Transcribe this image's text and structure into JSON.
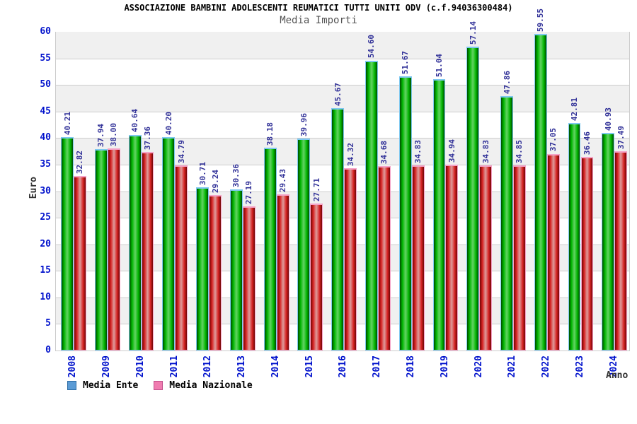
{
  "chart_data": {
    "type": "bar",
    "title": "ASSOCIAZIONE BAMBINI ADOLESCENTI REUMATICI TUTTI UNITI ODV (c.f.94036300484)",
    "subtitle": "Media Importi",
    "xlabel": "Anno",
    "ylabel": "Euro",
    "ylim": [
      0,
      60
    ],
    "yticks": [
      0,
      5,
      10,
      15,
      20,
      25,
      30,
      35,
      40,
      45,
      50,
      55,
      60
    ],
    "grid": "horizontal gridlines with alternating gray/white bands",
    "legend_position": "bottom-left",
    "value_label_decimals": 2,
    "categories": [
      "2008",
      "2009",
      "2010",
      "2011",
      "2012",
      "2013",
      "2014",
      "2015",
      "2016",
      "2017",
      "2018",
      "2019",
      "2020",
      "2021",
      "2022",
      "2023",
      "2024"
    ],
    "series": [
      {
        "name": "Media Ente",
        "values": [
          40.21,
          37.94,
          40.64,
          40.2,
          30.71,
          30.36,
          38.18,
          39.96,
          45.67,
          54.6,
          51.67,
          51.04,
          57.14,
          47.86,
          59.55,
          42.81,
          40.93
        ],
        "legend_color": "#5B9BD5",
        "legend_border": "#2E6DA4",
        "bar_edge": "#004B00",
        "bar_mid": "#00B400",
        "bar_center": "#63D463",
        "bar_cap": "#7EC8F0"
      },
      {
        "name": "Media Nazionale",
        "values": [
          32.82,
          38.0,
          37.36,
          34.79,
          29.24,
          27.19,
          29.43,
          27.71,
          34.32,
          34.68,
          34.83,
          34.94,
          34.83,
          34.85,
          37.05,
          36.46,
          37.49
        ],
        "legend_color": "#F07CB0",
        "legend_border": "#C2508C",
        "bar_edge": "#700707",
        "bar_mid": "#D62222",
        "bar_center": "#DE9C9C",
        "bar_cap": "#F5A3C8"
      }
    ],
    "colors": {
      "tick_label": "#0011CC",
      "value_label": "#333399",
      "band_gray": "#F0F0F0",
      "band_white": "#FFFFFF",
      "gridline": "#CCCCCC",
      "plot_border": "#CCCCCC",
      "subtitle": "#555555",
      "axis_title": "#333333"
    }
  }
}
